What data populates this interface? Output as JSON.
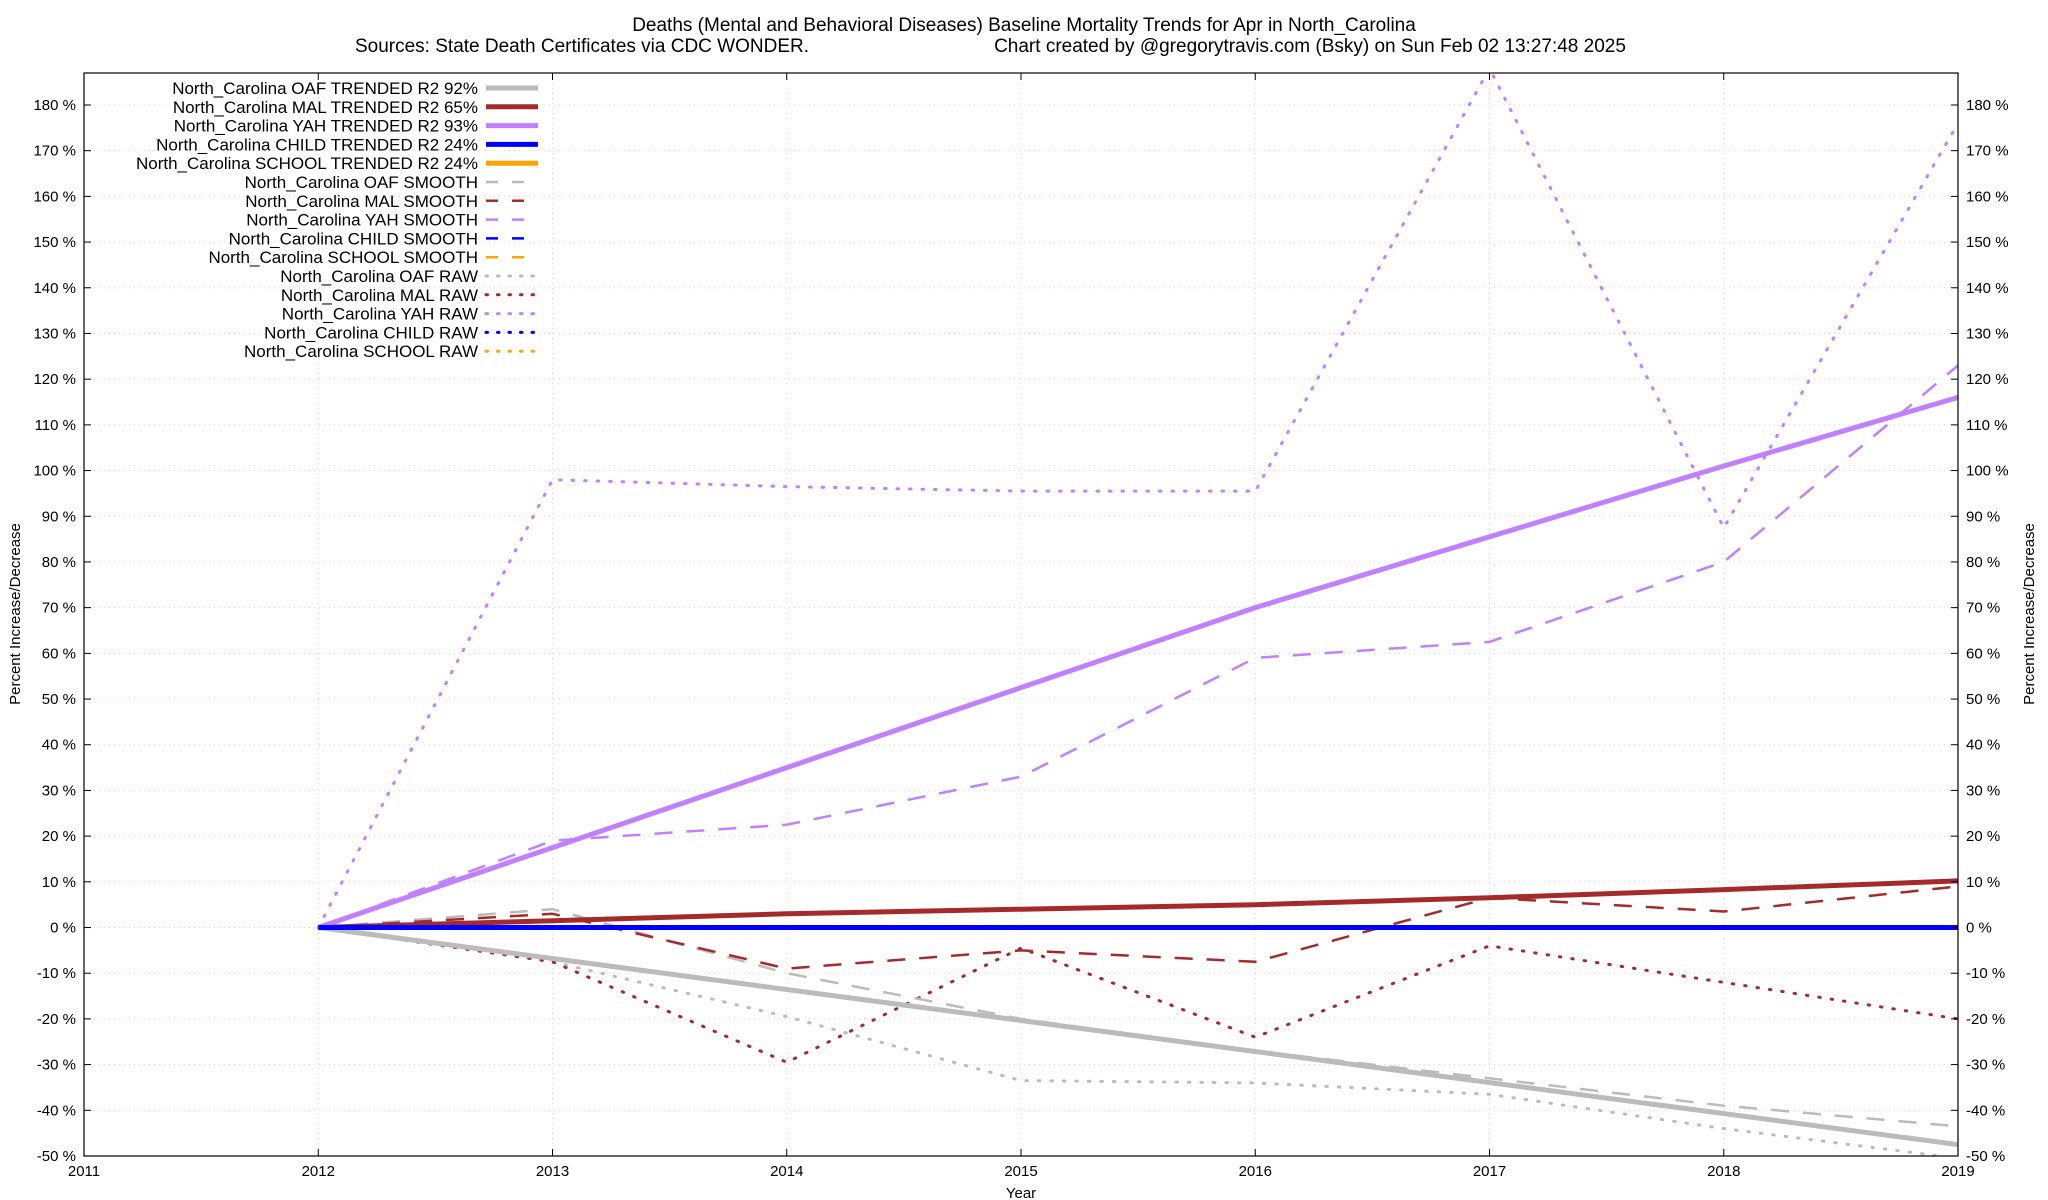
{
  "chart_data": {
    "type": "line",
    "title": "Deaths (Mental and Behavioral Diseases)  Baseline Mortality Trends for Apr in North_Carolina",
    "subtitle_left": "Sources: State Death Certificates via CDC WONDER.",
    "subtitle_right": "Chart created by @gregorytravis.com (Bsky) on Sun Feb 02 13:27:48 2025",
    "xlabel": "Year",
    "ylabel_left": "Percent Increase/Decrease",
    "ylabel_right": "Percent Increase/Decrease",
    "xlim": [
      2011,
      2019
    ],
    "ylim": [
      -50,
      187
    ],
    "x_ticks": [
      "2011",
      "2012",
      "2013",
      "2014",
      "2015",
      "2016",
      "2017",
      "2018",
      "2019"
    ],
    "y_ticks": [
      "-50 %",
      "-40 %",
      "-30 %",
      "-20 %",
      "-10 %",
      "0 %",
      "10 %",
      "20 %",
      "30 %",
      "40 %",
      "50 %",
      "60 %",
      "70 %",
      "80 %",
      "90 %",
      "100 %",
      "110 %",
      "120 %",
      "130 %",
      "140 %",
      "150 %",
      "160 %",
      "170 %",
      "180 %"
    ],
    "grid": true,
    "legend_position": "top-left",
    "series": [
      {
        "name": "North_Carolina OAF TRENDED R2  92%",
        "style": "solid",
        "color": "#bbbbbb",
        "x": [
          2012,
          2019
        ],
        "y": [
          0,
          -47.5
        ]
      },
      {
        "name": "North_Carolina MAL TRENDED R2  65%",
        "style": "solid",
        "color": "#a52a2a",
        "x": [
          2012,
          2013,
          2014,
          2015,
          2016,
          2017,
          2018,
          2019
        ],
        "y": [
          0,
          1.5,
          3,
          4,
          5,
          6.5,
          8.3,
          10.2
        ]
      },
      {
        "name": "North_Carolina YAH TRENDED R2  93%",
        "style": "solid",
        "color": "#c080ff",
        "x": [
          2012,
          2013,
          2014,
          2015,
          2016,
          2017,
          2018,
          2019
        ],
        "y": [
          0,
          17.5,
          35,
          52.5,
          70,
          85.5,
          101,
          116
        ]
      },
      {
        "name": "North_Carolina CHILD TRENDED R2  24%",
        "style": "solid",
        "color": "#0000ff",
        "x": [
          2012,
          2019
        ],
        "y": [
          0,
          0
        ]
      },
      {
        "name": "North_Carolina SCHOOL TRENDED R2  24%",
        "style": "solid",
        "color": "#ffa500",
        "x": [],
        "y": []
      },
      {
        "name": "North_Carolina OAF SMOOTH",
        "style": "dashed",
        "color": "#bbbbbb",
        "x": [
          2012,
          2013,
          2014,
          2015,
          2016,
          2017,
          2018,
          2019
        ],
        "y": [
          0,
          4,
          -10,
          -20,
          -27,
          -33,
          -39,
          -43.5
        ]
      },
      {
        "name": "North_Carolina MAL SMOOTH",
        "style": "dashed",
        "color": "#a52a2a",
        "x": [
          2012,
          2013,
          2014,
          2015,
          2016,
          2017,
          2018,
          2019
        ],
        "y": [
          0,
          3,
          -9,
          -5,
          -7.5,
          6.5,
          3.5,
          9
        ]
      },
      {
        "name": "North_Carolina YAH SMOOTH",
        "style": "dashed",
        "color": "#c080ff",
        "x": [
          2012,
          2013,
          2014,
          2015,
          2016,
          2017,
          2018,
          2019
        ],
        "y": [
          0,
          19,
          22.5,
          33,
          59,
          62.5,
          80,
          123
        ]
      },
      {
        "name": "North_Carolina CHILD SMOOTH",
        "style": "dashed",
        "color": "#0000ff",
        "x": [],
        "y": []
      },
      {
        "name": "North_Carolina SCHOOL SMOOTH",
        "style": "dashed",
        "color": "#ffa500",
        "x": [],
        "y": []
      },
      {
        "name": "North_Carolina OAF RAW",
        "style": "dotted",
        "color": "#bbbbbb",
        "x": [
          2012,
          2013,
          2014,
          2015,
          2016,
          2017,
          2018,
          2019
        ],
        "y": [
          0,
          -7.5,
          -19.5,
          -33.5,
          -34,
          -36.5,
          -44,
          -50.5
        ]
      },
      {
        "name": "North_Carolina MAL RAW",
        "style": "dotted",
        "color": "#a52a2a",
        "x": [
          2012,
          2013,
          2014,
          2015,
          2016,
          2017,
          2018,
          2019
        ],
        "y": [
          0,
          -7.5,
          -29.5,
          -4.5,
          -24,
          -4,
          -12,
          -20
        ]
      },
      {
        "name": "North_Carolina YAH RAW",
        "style": "dotted",
        "color": "#c080ff",
        "x": [
          2012,
          2013,
          2014,
          2015,
          2016,
          2017,
          2018,
          2019
        ],
        "y": [
          0,
          98,
          96.5,
          95.5,
          95.5,
          188,
          87.5,
          176
        ]
      },
      {
        "name": "North_Carolina CHILD RAW",
        "style": "dotted",
        "color": "#0000ff",
        "x": [],
        "y": []
      },
      {
        "name": "North_Carolina SCHOOL RAW",
        "style": "dotted",
        "color": "#ffa500",
        "x": [],
        "y": []
      }
    ]
  }
}
